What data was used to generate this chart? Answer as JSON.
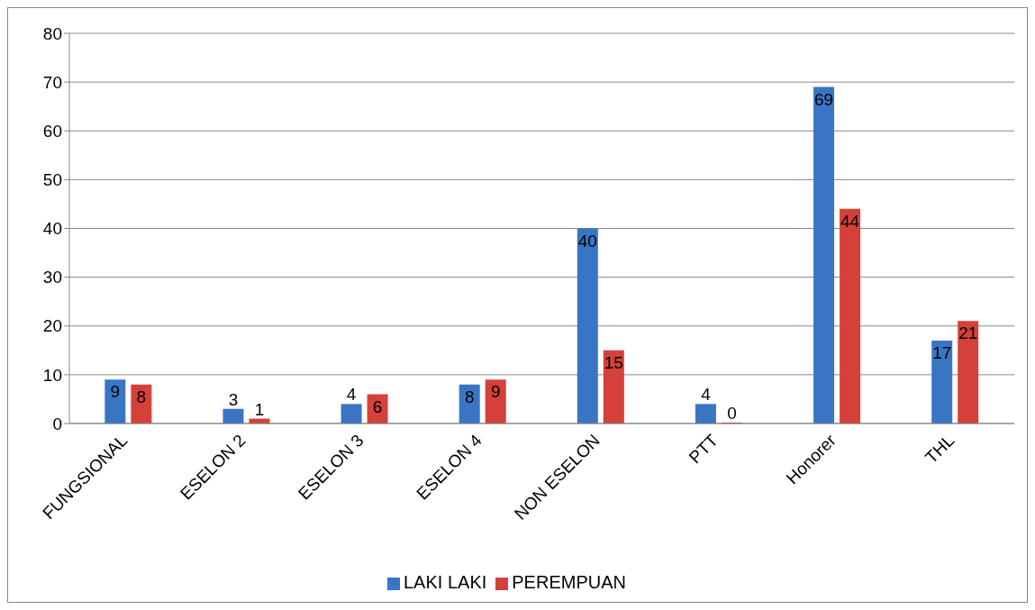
{
  "chart_data": {
    "type": "bar",
    "categories": [
      "FUNGSIONAL",
      "ESELON 2",
      "ESELON 3",
      "ESELON 4",
      "NON ESELON",
      "PTT",
      "Honorer",
      "THL"
    ],
    "series": [
      {
        "name": "LAKI LAKI",
        "color": "#3a75c4",
        "values": [
          9,
          3,
          4,
          8,
          40,
          4,
          69,
          17
        ]
      },
      {
        "name": "PEREMPUAN",
        "color": "#d5403b",
        "values": [
          8,
          1,
          6,
          9,
          15,
          0,
          44,
          21
        ]
      }
    ],
    "ylim": [
      0,
      80
    ],
    "yticks": [
      0,
      10,
      20,
      30,
      40,
      50,
      60,
      70,
      80
    ],
    "grid": "y",
    "legend": "bottom",
    "data_labels": true
  }
}
